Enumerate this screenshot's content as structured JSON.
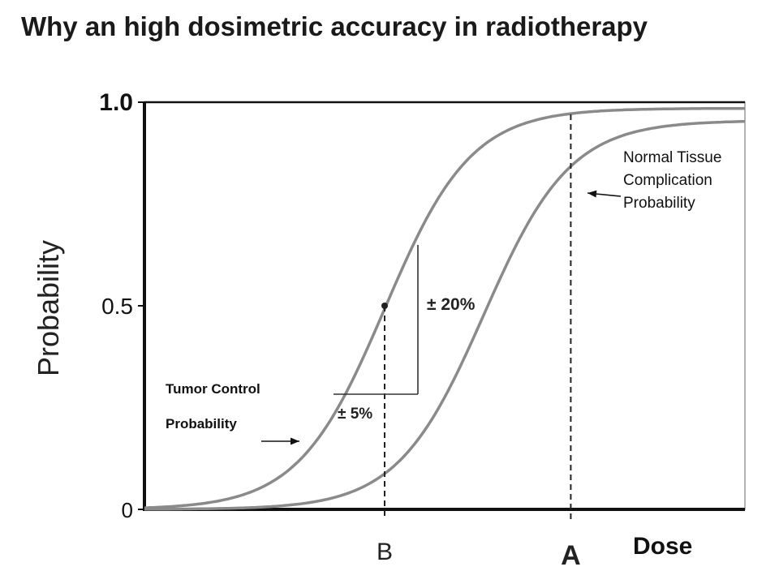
{
  "title": "Why an high dosimetric accuracy in radiotherapy",
  "chart_data": {
    "type": "line",
    "ylabel": "Probability",
    "xlabel": "Dose",
    "ylim": [
      0,
      1
    ],
    "yticks": [
      "0",
      "0.5",
      "1.0"
    ],
    "x_markers": [
      {
        "label": "B",
        "x": 0.4
      },
      {
        "label": "A",
        "x": 0.71
      }
    ],
    "series": [
      {
        "name": "Tumor Control Probability",
        "label_lines": [
          "Tumor Control",
          "Probability"
        ],
        "midpoint": 0.4,
        "width": 0.072,
        "ymax": 0.985
      },
      {
        "name": "Normal Tissue Complication Probability",
        "label_lines": [
          "Normal Tissue",
          "Complication",
          "Probability"
        ],
        "midpoint": 0.565,
        "width": 0.072,
        "ymax": 0.955
      }
    ],
    "annotations": [
      {
        "text": "± 5%"
      },
      {
        "text": "± 20%"
      }
    ],
    "grid": false,
    "color": "#8a8a8a",
    "axis_color": "#111111"
  }
}
